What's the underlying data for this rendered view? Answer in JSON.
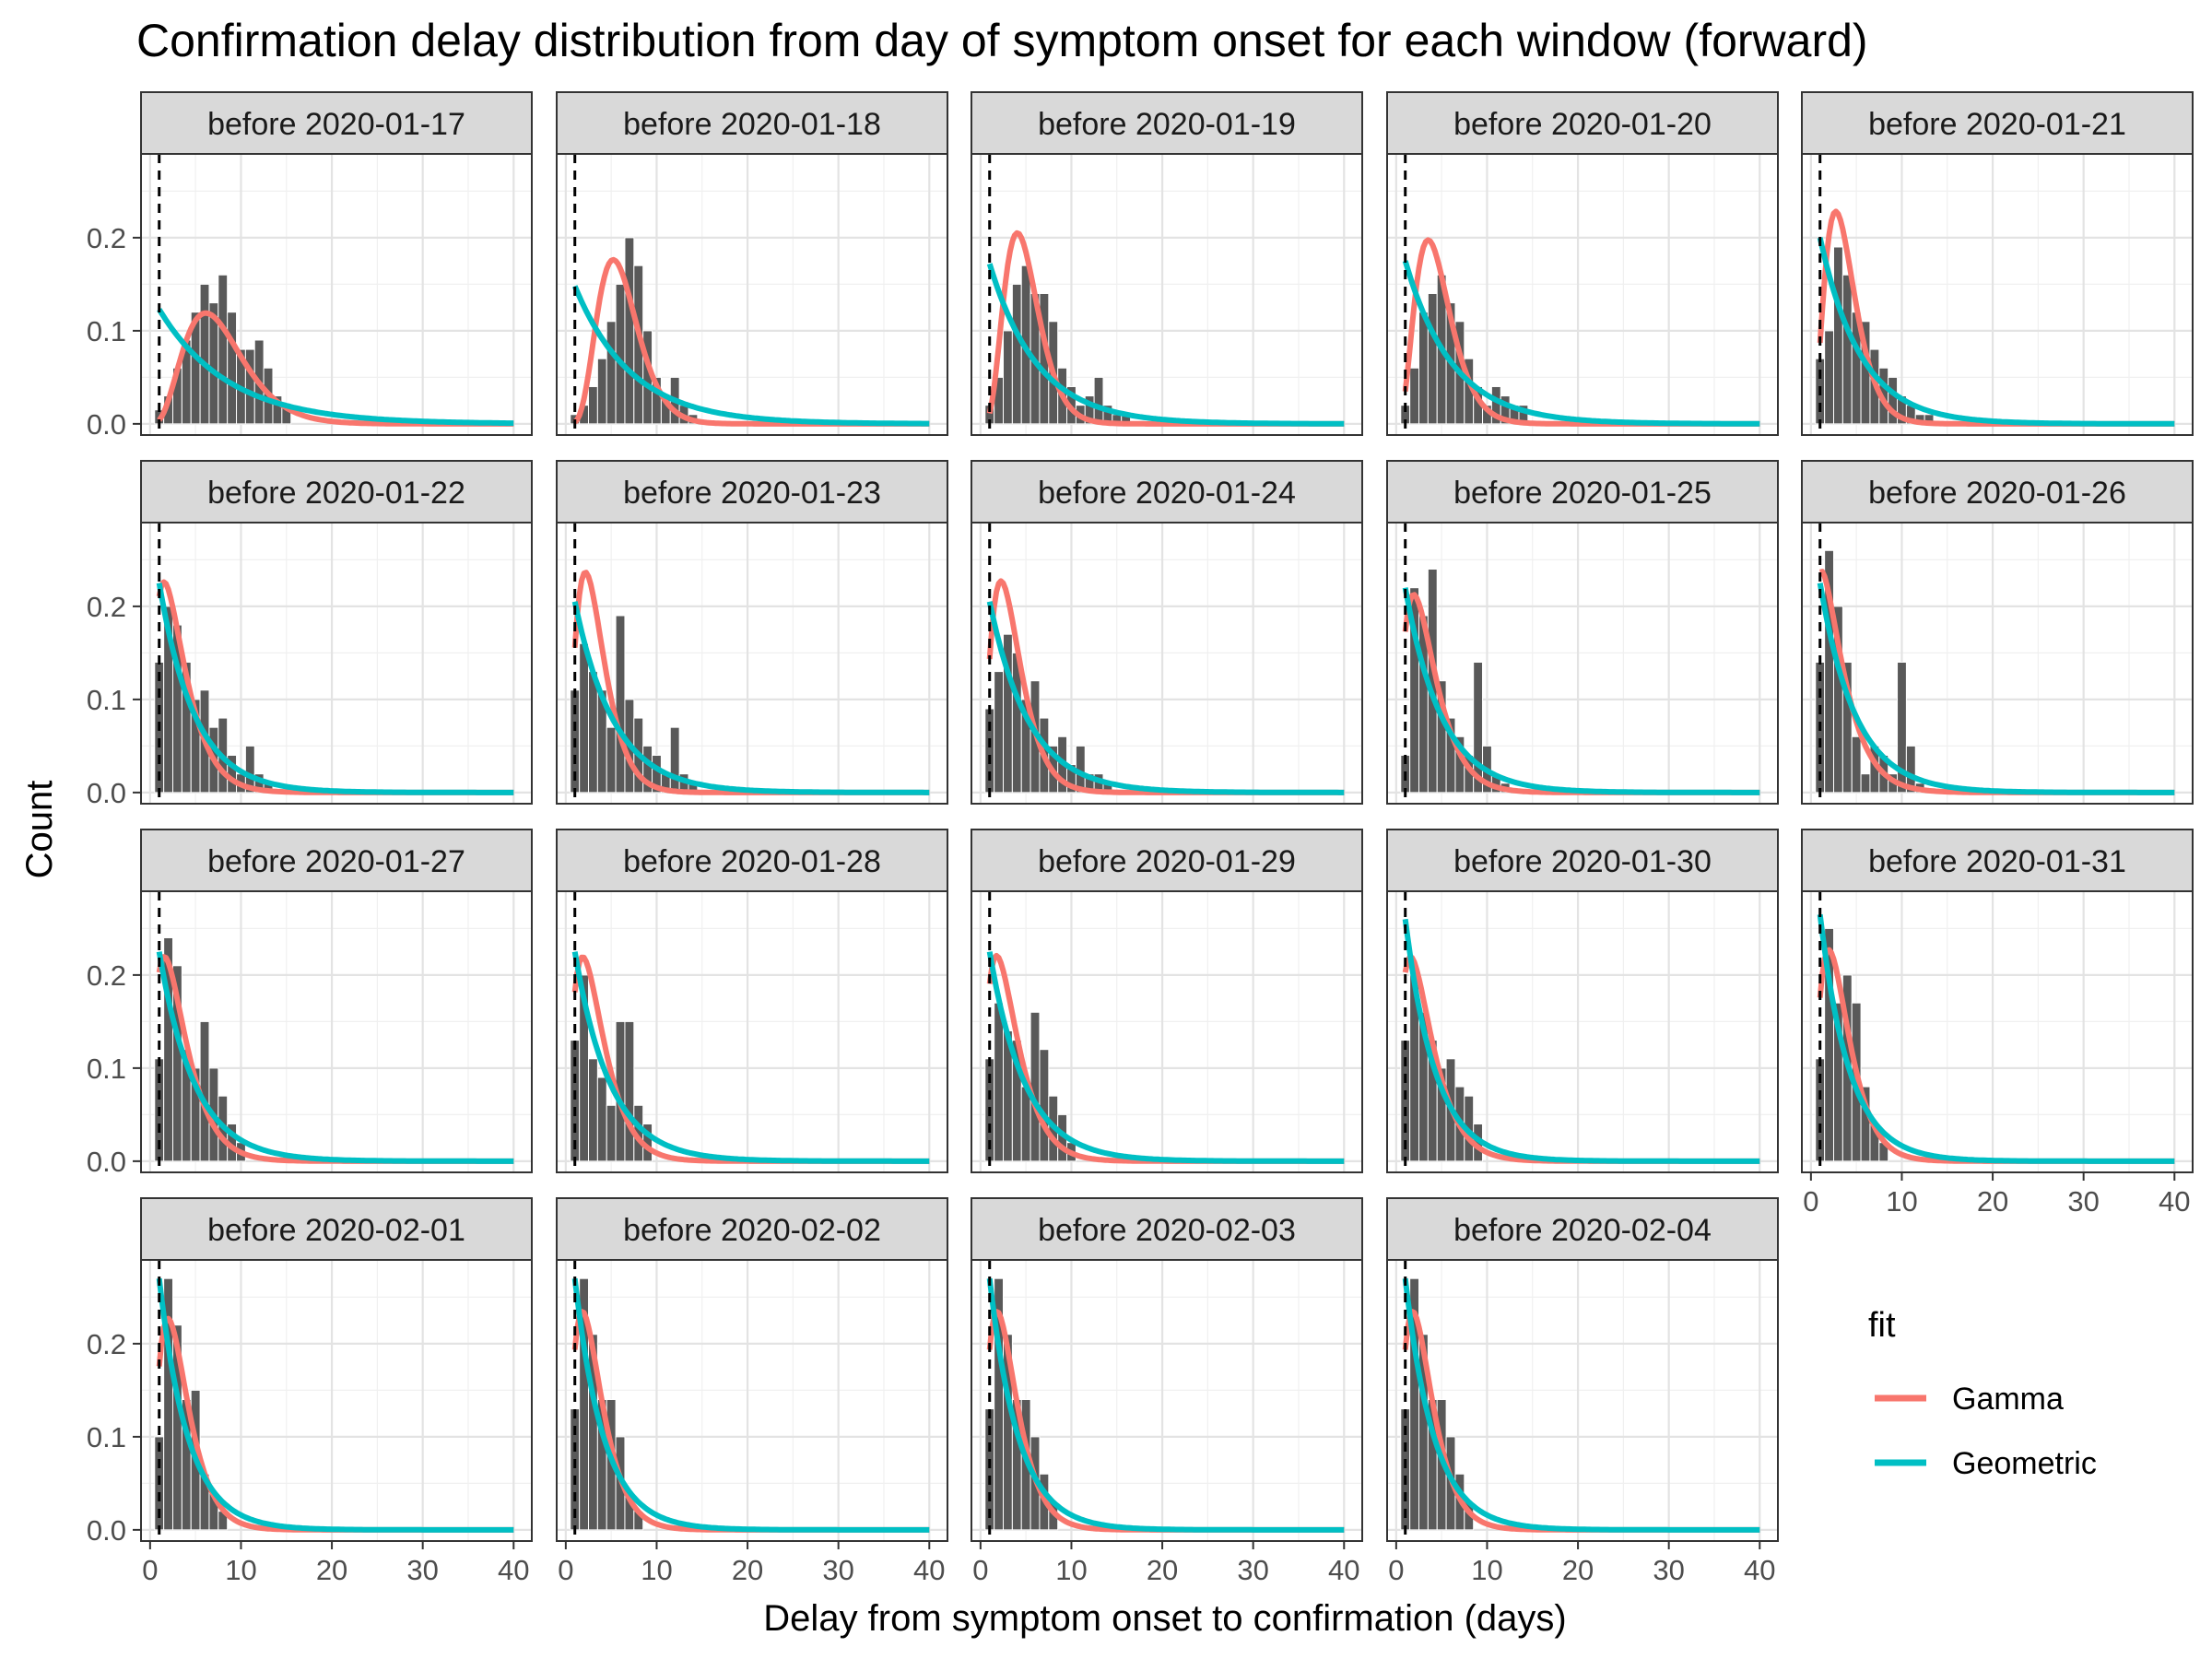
{
  "chart_data": {
    "type": "bar",
    "title": "Confirmation delay distribution from day of symptom onset for each window (forward)",
    "xlabel": "Delay from symptom onset to confirmation (days)",
    "ylabel": "Count",
    "xlim": [
      -1,
      42
    ],
    "ylim": [
      -0.012,
      0.29
    ],
    "x_ticks": [
      0,
      10,
      20,
      30,
      40
    ],
    "y_ticks": [
      0.0,
      0.1,
      0.2
    ],
    "y_tick_labels": [
      "0.0",
      "0.1",
      "0.2"
    ],
    "vline_x": 1,
    "grid": true,
    "legend": {
      "title": "fit",
      "position": "right",
      "entries": [
        {
          "name": "Gamma",
          "color": "#F8766D"
        },
        {
          "name": "Geometric",
          "color": "#00BFC4"
        }
      ]
    },
    "colors": {
      "bar": "#595959",
      "gamma": "#F8766D",
      "geometric": "#00BFC4",
      "strip": "#d9d9d9"
    },
    "panels": [
      {
        "label": "before 2020-01-17",
        "bars": [
          [
            1,
            0.015
          ],
          [
            2,
            0.03
          ],
          [
            3,
            0.06
          ],
          [
            4,
            0.09
          ],
          [
            5,
            0.12
          ],
          [
            6,
            0.15
          ],
          [
            7,
            0.13
          ],
          [
            8,
            0.16
          ],
          [
            9,
            0.12
          ],
          [
            10,
            0.08
          ],
          [
            11,
            0.08
          ],
          [
            12,
            0.09
          ],
          [
            13,
            0.06
          ],
          [
            14,
            0.03
          ],
          [
            15,
            0.02
          ]
        ],
        "gamma": {
          "shape": 4.5,
          "scale": 1.75
        },
        "geometric": {
          "p": 0.123
        }
      },
      {
        "label": "before 2020-01-18",
        "bars": [
          [
            1,
            0.01
          ],
          [
            2,
            0.02
          ],
          [
            3,
            0.04
          ],
          [
            4,
            0.07
          ],
          [
            5,
            0.11
          ],
          [
            6,
            0.15
          ],
          [
            7,
            0.2
          ],
          [
            8,
            0.17
          ],
          [
            9,
            0.1
          ],
          [
            10,
            0.05
          ],
          [
            11,
            0.03
          ],
          [
            12,
            0.05
          ],
          [
            13,
            0.02
          ],
          [
            14,
            0.01
          ]
        ],
        "gamma": {
          "shape": 6.5,
          "scale": 0.95
        },
        "geometric": {
          "p": 0.148
        }
      },
      {
        "label": "before 2020-01-19",
        "bars": [
          [
            1,
            0.02
          ],
          [
            2,
            0.05
          ],
          [
            3,
            0.1
          ],
          [
            4,
            0.15
          ],
          [
            5,
            0.17
          ],
          [
            6,
            0.14
          ],
          [
            7,
            0.14
          ],
          [
            8,
            0.11
          ],
          [
            9,
            0.06
          ],
          [
            10,
            0.04
          ],
          [
            11,
            0.02
          ],
          [
            12,
            0.03
          ],
          [
            13,
            0.05
          ],
          [
            14,
            0.02
          ],
          [
            15,
            0.01
          ],
          [
            16,
            0.01
          ]
        ],
        "gamma": {
          "shape": 5.5,
          "scale": 0.9
        },
        "geometric": {
          "p": 0.172
        }
      },
      {
        "label": "before 2020-01-20",
        "bars": [
          [
            1,
            0.02
          ],
          [
            2,
            0.06
          ],
          [
            3,
            0.12
          ],
          [
            4,
            0.14
          ],
          [
            5,
            0.16
          ],
          [
            6,
            0.13
          ],
          [
            7,
            0.11
          ],
          [
            8,
            0.07
          ],
          [
            9,
            0.04
          ],
          [
            10,
            0.02
          ],
          [
            11,
            0.04
          ],
          [
            12,
            0.03
          ],
          [
            13,
            0.02
          ],
          [
            14,
            0.02
          ]
        ],
        "gamma": {
          "shape": 4.2,
          "scale": 1.1
        },
        "geometric": {
          "p": 0.175
        }
      },
      {
        "label": "before 2020-01-21",
        "bars": [
          [
            1,
            0.07
          ],
          [
            2,
            0.1
          ],
          [
            3,
            0.19
          ],
          [
            4,
            0.16
          ],
          [
            5,
            0.12
          ],
          [
            6,
            0.11
          ],
          [
            7,
            0.08
          ],
          [
            8,
            0.06
          ],
          [
            9,
            0.05
          ],
          [
            10,
            0.03
          ],
          [
            11,
            0.02
          ],
          [
            12,
            0.01
          ],
          [
            13,
            0.01
          ]
        ],
        "gamma": {
          "shape": 3.6,
          "scale": 1.05
        },
        "geometric": {
          "p": 0.2
        }
      },
      {
        "label": "before 2020-01-22",
        "bars": [
          [
            1,
            0.14
          ],
          [
            2,
            0.2
          ],
          [
            3,
            0.18
          ],
          [
            4,
            0.14
          ],
          [
            5,
            0.1
          ],
          [
            6,
            0.11
          ],
          [
            7,
            0.07
          ],
          [
            8,
            0.08
          ],
          [
            9,
            0.04
          ],
          [
            10,
            0.02
          ],
          [
            11,
            0.05
          ],
          [
            12,
            0.02
          ],
          [
            13,
            0.01
          ]
        ],
        "gamma": {
          "shape": 1.9,
          "scale": 1.7
        },
        "geometric": {
          "p": 0.225
        }
      },
      {
        "label": "before 2020-01-23",
        "bars": [
          [
            1,
            0.11
          ],
          [
            2,
            0.16
          ],
          [
            3,
            0.13
          ],
          [
            4,
            0.11
          ],
          [
            5,
            0.07
          ],
          [
            6,
            0.19
          ],
          [
            7,
            0.1
          ],
          [
            8,
            0.08
          ],
          [
            9,
            0.05
          ],
          [
            10,
            0.04
          ],
          [
            11,
            0.02
          ],
          [
            12,
            0.07
          ],
          [
            13,
            0.02
          ],
          [
            14,
            0.01
          ]
        ],
        "gamma": {
          "shape": 2.8,
          "scale": 1.2
        },
        "geometric": {
          "p": 0.205
        }
      },
      {
        "label": "before 2020-01-24",
        "bars": [
          [
            1,
            0.09
          ],
          [
            2,
            0.13
          ],
          [
            3,
            0.17
          ],
          [
            4,
            0.15
          ],
          [
            5,
            0.1
          ],
          [
            6,
            0.12
          ],
          [
            7,
            0.08
          ],
          [
            8,
            0.05
          ],
          [
            9,
            0.06
          ],
          [
            10,
            0.03
          ],
          [
            11,
            0.05
          ],
          [
            12,
            0.02
          ],
          [
            13,
            0.02
          ],
          [
            14,
            0.01
          ]
        ],
        "gamma": {
          "shape": 2.8,
          "scale": 1.25
        },
        "geometric": {
          "p": 0.205
        }
      },
      {
        "label": "before 2020-01-25",
        "bars": [
          [
            1,
            0.04
          ],
          [
            2,
            0.22
          ],
          [
            3,
            0.19
          ],
          [
            4,
            0.24
          ],
          [
            5,
            0.12
          ],
          [
            6,
            0.08
          ],
          [
            7,
            0.06
          ],
          [
            8,
            0.04
          ],
          [
            9,
            0.14
          ],
          [
            10,
            0.05
          ],
          [
            11,
            0.02
          ],
          [
            12,
            0.01
          ]
        ],
        "gamma": {
          "shape": 2.2,
          "scale": 1.6
        },
        "geometric": {
          "p": 0.22
        }
      },
      {
        "label": "before 2020-01-26",
        "bars": [
          [
            1,
            0.14
          ],
          [
            2,
            0.26
          ],
          [
            3,
            0.2
          ],
          [
            4,
            0.14
          ],
          [
            5,
            0.06
          ],
          [
            6,
            0.02
          ],
          [
            7,
            0.05
          ],
          [
            8,
            0.04
          ],
          [
            9,
            0.02
          ],
          [
            10,
            0.14
          ],
          [
            11,
            0.05
          ],
          [
            12,
            0.01
          ]
        ],
        "gamma": {
          "shape": 1.6,
          "scale": 1.9
        },
        "geometric": {
          "p": 0.225
        }
      },
      {
        "label": "before 2020-01-27",
        "bars": [
          [
            1,
            0.11
          ],
          [
            2,
            0.24
          ],
          [
            3,
            0.21
          ],
          [
            4,
            0.12
          ],
          [
            5,
            0.1
          ],
          [
            6,
            0.15
          ],
          [
            7,
            0.1
          ],
          [
            8,
            0.07
          ],
          [
            9,
            0.04
          ],
          [
            10,
            0.02
          ]
        ],
        "gamma": {
          "shape": 1.9,
          "scale": 1.75
        },
        "geometric": {
          "p": 0.225
        }
      },
      {
        "label": "before 2020-01-28",
        "bars": [
          [
            1,
            0.13
          ],
          [
            2,
            0.2
          ],
          [
            3,
            0.11
          ],
          [
            4,
            0.09
          ],
          [
            5,
            0.06
          ],
          [
            6,
            0.15
          ],
          [
            7,
            0.15
          ],
          [
            8,
            0.06
          ],
          [
            9,
            0.04
          ]
        ],
        "gamma": {
          "shape": 2.2,
          "scale": 1.55
        },
        "geometric": {
          "p": 0.225
        }
      },
      {
        "label": "before 2020-01-29",
        "bars": [
          [
            1,
            0.11
          ],
          [
            2,
            0.17
          ],
          [
            3,
            0.14
          ],
          [
            4,
            0.13
          ],
          [
            5,
            0.08
          ],
          [
            6,
            0.16
          ],
          [
            7,
            0.12
          ],
          [
            8,
            0.07
          ],
          [
            9,
            0.05
          ],
          [
            10,
            0.02
          ]
        ],
        "gamma": {
          "shape": 2.1,
          "scale": 1.6
        },
        "geometric": {
          "p": 0.225
        }
      },
      {
        "label": "before 2020-01-30",
        "bars": [
          [
            1,
            0.13
          ],
          [
            2,
            0.2
          ],
          [
            3,
            0.16
          ],
          [
            4,
            0.13
          ],
          [
            5,
            0.1
          ],
          [
            6,
            0.11
          ],
          [
            7,
            0.08
          ],
          [
            8,
            0.07
          ],
          [
            9,
            0.04
          ]
        ],
        "gamma": {
          "shape": 1.9,
          "scale": 1.75
        },
        "geometric": {
          "p": 0.26
        }
      },
      {
        "label": "before 2020-01-31",
        "bars": [
          [
            1,
            0.11
          ],
          [
            2,
            0.25
          ],
          [
            3,
            0.17
          ],
          [
            4,
            0.2
          ],
          [
            5,
            0.17
          ],
          [
            6,
            0.08
          ],
          [
            7,
            0.04
          ],
          [
            8,
            0.02
          ]
        ],
        "gamma": {
          "shape": 2.4,
          "scale": 1.4
        },
        "geometric": {
          "p": 0.265
        }
      },
      {
        "label": "before 2020-02-01",
        "bars": [
          [
            1,
            0.1
          ],
          [
            2,
            0.27
          ],
          [
            3,
            0.22
          ],
          [
            4,
            0.14
          ],
          [
            5,
            0.15
          ],
          [
            6,
            0.06
          ],
          [
            7,
            0.04
          ],
          [
            8,
            0.02
          ]
        ],
        "gamma": {
          "shape": 2.4,
          "scale": 1.4
        },
        "geometric": {
          "p": 0.27
        }
      },
      {
        "label": "before 2020-02-02",
        "bars": [
          [
            1,
            0.13
          ],
          [
            2,
            0.27
          ],
          [
            3,
            0.21
          ],
          [
            4,
            0.14
          ],
          [
            5,
            0.14
          ],
          [
            6,
            0.1
          ],
          [
            7,
            0.04
          ],
          [
            8,
            0.02
          ]
        ],
        "gamma": {
          "shape": 2.3,
          "scale": 1.4
        },
        "geometric": {
          "p": 0.27
        }
      },
      {
        "label": "before 2020-02-03",
        "bars": [
          [
            1,
            0.13
          ],
          [
            2,
            0.27
          ],
          [
            3,
            0.21
          ],
          [
            4,
            0.14
          ],
          [
            5,
            0.14
          ],
          [
            6,
            0.1
          ],
          [
            7,
            0.06
          ],
          [
            8,
            0.03
          ]
        ],
        "gamma": {
          "shape": 2.3,
          "scale": 1.4
        },
        "geometric": {
          "p": 0.27
        }
      },
      {
        "label": "before 2020-02-04",
        "bars": [
          [
            1,
            0.13
          ],
          [
            2,
            0.27
          ],
          [
            3,
            0.21
          ],
          [
            4,
            0.14
          ],
          [
            5,
            0.14
          ],
          [
            6,
            0.1
          ],
          [
            7,
            0.06
          ],
          [
            8,
            0.03
          ]
        ],
        "gamma": {
          "shape": 2.3,
          "scale": 1.4
        },
        "geometric": {
          "p": 0.27
        }
      }
    ]
  }
}
